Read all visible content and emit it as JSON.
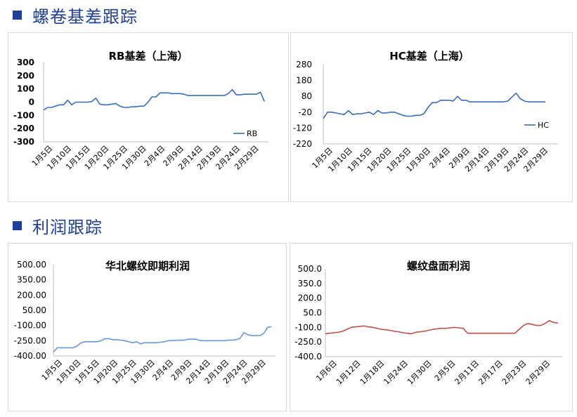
{
  "sections": [
    {
      "title": "螺卷基差跟踪"
    },
    {
      "title": "利润跟踪"
    }
  ],
  "colors": {
    "accent": "#1f3f9a",
    "blue_line": "#3a6cc0",
    "light_blue_line": "#6699d6",
    "red_line": "#c0504d"
  },
  "chart_data": [
    {
      "type": "line",
      "title": "RB基差（上海）",
      "yticks": [
        "300",
        "200",
        "100",
        "0",
        "-100",
        "-200",
        "-300"
      ],
      "ylim": [
        -300,
        300
      ],
      "xticks": [
        "1月5日",
        "1月10日",
        "1月15日",
        "1月20日",
        "1月25日",
        "1月30日",
        "2月4日",
        "2月9日",
        "2月14日",
        "2月19日",
        "2月24日",
        "2月29日"
      ],
      "xlim": [
        5,
        61
      ],
      "legend": "bottom-right",
      "series": [
        {
          "name": "RB",
          "x": [
            5,
            6,
            7,
            8,
            9,
            10,
            11,
            12,
            13,
            14,
            15,
            16,
            17,
            18,
            19,
            20,
            21,
            22,
            23,
            24,
            25,
            26,
            27,
            28,
            29,
            30,
            31,
            32,
            33,
            34,
            35,
            36,
            37,
            38,
            39,
            40,
            41,
            42,
            43,
            44,
            45,
            46,
            47,
            48,
            49,
            50,
            51,
            52,
            53,
            54,
            55,
            56,
            57,
            58,
            59,
            60
          ],
          "values": [
            -60,
            -40,
            -40,
            -30,
            -20,
            -20,
            15,
            -20,
            0,
            0,
            0,
            0,
            5,
            30,
            -15,
            -20,
            -20,
            -15,
            -10,
            -30,
            -40,
            -40,
            -35,
            -35,
            -30,
            -30,
            0,
            40,
            40,
            70,
            70,
            70,
            65,
            65,
            65,
            60,
            50,
            50,
            50,
            50,
            50,
            50,
            50,
            50,
            50,
            50,
            65,
            95,
            55,
            55,
            60,
            60,
            60,
            60,
            75,
            5
          ]
        }
      ]
    },
    {
      "type": "line",
      "title": "HC基差（上海）",
      "yticks": [
        "280",
        "180",
        "80",
        "-20",
        "-120",
        "-220"
      ],
      "ylim": [
        -220,
        280
      ],
      "xticks": [
        "1月5日",
        "1月10日",
        "1月15日",
        "1月20日",
        "1月25日",
        "1月30日",
        "2月4日",
        "2月9日",
        "2月14日",
        "2月19日",
        "2月24日",
        "2月29日"
      ],
      "xlim": [
        5,
        61
      ],
      "legend": "right",
      "series": [
        {
          "name": "HC",
          "x": [
            5,
            6,
            7,
            8,
            9,
            10,
            11,
            12,
            13,
            14,
            15,
            16,
            17,
            18,
            19,
            20,
            21,
            22,
            23,
            24,
            25,
            26,
            27,
            28,
            29,
            30,
            31,
            32,
            33,
            34,
            35,
            36,
            37,
            38,
            39,
            40,
            41,
            42,
            43,
            44,
            45,
            46,
            47,
            48,
            49,
            50,
            51,
            52,
            53,
            54,
            55,
            56,
            57,
            58
          ],
          "values": [
            -60,
            -20,
            -20,
            -25,
            -30,
            -35,
            -10,
            -35,
            -30,
            -30,
            -25,
            -20,
            -35,
            -10,
            -25,
            -25,
            -20,
            -20,
            -30,
            -40,
            -45,
            -45,
            -40,
            -40,
            -30,
            10,
            40,
            40,
            55,
            55,
            55,
            50,
            80,
            55,
            55,
            45,
            45,
            45,
            45,
            45,
            45,
            45,
            45,
            45,
            50,
            75,
            100,
            65,
            50,
            45,
            45,
            45,
            45,
            45
          ]
        }
      ]
    },
    {
      "type": "line",
      "title": "华北螺纹即期利润",
      "yticks": [
        "500.00",
        "350.00",
        "200.00",
        "50.00",
        "-100.00",
        "-250.00",
        "-400.00"
      ],
      "ylim": [
        -400,
        500
      ],
      "xticks": [
        "1月5日",
        "1月10日",
        "1月15日",
        "1月20日",
        "1月25日",
        "1月30日",
        "2月4日",
        "2月9日",
        "2月14日",
        "2月19日",
        "2月24日",
        "2月29日"
      ],
      "xlim": [
        5,
        61
      ],
      "series": [
        {
          "name": "",
          "x": [
            5,
            6,
            7,
            8,
            9,
            10,
            11,
            12,
            13,
            14,
            15,
            16,
            17,
            18,
            19,
            20,
            21,
            22,
            23,
            24,
            25,
            26,
            27,
            28,
            29,
            30,
            31,
            32,
            33,
            34,
            35,
            36,
            37,
            38,
            39,
            40,
            41,
            42,
            43,
            44,
            45,
            46,
            47,
            48,
            49,
            50,
            51,
            52,
            53,
            54,
            55,
            56,
            57,
            58,
            59,
            60
          ],
          "values": [
            -360,
            -320,
            -320,
            -320,
            -320,
            -320,
            -300,
            -270,
            -260,
            -260,
            -260,
            -260,
            -250,
            -230,
            -230,
            -240,
            -240,
            -245,
            -250,
            -260,
            -270,
            -260,
            -280,
            -270,
            -270,
            -270,
            -270,
            -265,
            -260,
            -250,
            -250,
            -245,
            -245,
            -245,
            -235,
            -235,
            -235,
            -250,
            -250,
            -250,
            -250,
            -250,
            -250,
            -250,
            -245,
            -245,
            -240,
            -230,
            -170,
            -190,
            -200,
            -200,
            -200,
            -180,
            -120,
            -110
          ]
        }
      ]
    },
    {
      "type": "line",
      "title": "螺纹盘面利润",
      "yticks": [
        "500.0",
        "350.0",
        "200.0",
        "50.0",
        "-100.0",
        "-250.0",
        "-400.0"
      ],
      "ylim": [
        -400,
        500
      ],
      "xticks": [
        "1月6日",
        "1月12日",
        "1月18日",
        "1月24日",
        "1月30日",
        "2月5日",
        "2月11日",
        "2月17日",
        "2月23日",
        "2月29日"
      ],
      "xlim": [
        6,
        61
      ],
      "series": [
        {
          "name": "",
          "x": [
            6,
            7,
            8,
            9,
            10,
            11,
            12,
            13,
            14,
            15,
            16,
            17,
            18,
            19,
            20,
            21,
            22,
            23,
            24,
            25,
            26,
            27,
            28,
            29,
            30,
            31,
            32,
            33,
            34,
            35,
            36,
            37,
            38,
            39,
            40,
            41,
            42,
            43,
            44,
            45,
            46,
            47,
            48,
            49,
            50,
            51,
            52,
            53,
            54,
            55,
            56,
            57,
            58,
            59,
            60
          ],
          "values": [
            -165,
            -160,
            -155,
            -150,
            -140,
            -120,
            -100,
            -95,
            -90,
            -85,
            -95,
            -100,
            -110,
            -120,
            -125,
            -130,
            -140,
            -145,
            -155,
            -160,
            -165,
            -150,
            -145,
            -140,
            -130,
            -120,
            -115,
            -110,
            -110,
            -105,
            -100,
            -105,
            -110,
            -160,
            -160,
            -160,
            -160,
            -160,
            -160,
            -160,
            -160,
            -160,
            -160,
            -160,
            -160,
            -120,
            -80,
            -60,
            -70,
            -80,
            -80,
            -60,
            -30,
            -50,
            -55
          ]
        }
      ]
    }
  ]
}
